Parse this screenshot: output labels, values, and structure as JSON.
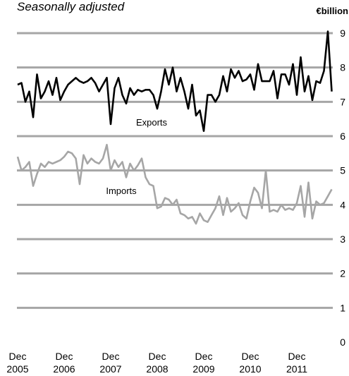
{
  "chart_data": {
    "type": "line",
    "subtitle": "Seasonally adjusted",
    "unit_label": "€billion",
    "ylim": [
      0,
      9
    ],
    "y_ticks": [
      0,
      1,
      2,
      3,
      4,
      5,
      6,
      7,
      8,
      9
    ],
    "grid": true,
    "x_tick_labels": [
      {
        "month": "Dec",
        "year": "2005"
      },
      {
        "month": "Dec",
        "year": "2006"
      },
      {
        "month": "Dec",
        "year": "2007"
      },
      {
        "month": "Dec",
        "year": "2008"
      },
      {
        "month": "Dec",
        "year": "2009"
      },
      {
        "month": "Dec",
        "year": "2010"
      },
      {
        "month": "Dec",
        "year": "2011"
      }
    ],
    "x_start": "2005-12",
    "series": [
      {
        "name": "Exports",
        "color": "#000000",
        "values": [
          7.5,
          7.55,
          7.0,
          7.3,
          6.55,
          7.8,
          7.1,
          7.3,
          7.6,
          7.2,
          7.7,
          7.05,
          7.3,
          7.5,
          7.6,
          7.7,
          7.6,
          7.55,
          7.6,
          7.7,
          7.55,
          7.3,
          7.5,
          7.7,
          6.35,
          7.4,
          7.7,
          7.2,
          6.95,
          7.4,
          7.2,
          7.35,
          7.3,
          7.35,
          7.35,
          7.2,
          6.8,
          7.3,
          7.95,
          7.5,
          8.0,
          7.3,
          7.7,
          7.3,
          6.8,
          7.5,
          6.6,
          6.75,
          6.15,
          7.2,
          7.2,
          7.0,
          7.2,
          7.75,
          7.3,
          7.95,
          7.7,
          7.9,
          7.6,
          7.65,
          7.8,
          7.35,
          8.1,
          7.6,
          7.6,
          7.6,
          7.9,
          7.1,
          7.8,
          7.8,
          7.5,
          8.1,
          7.2,
          8.3,
          7.3,
          7.75,
          7.05,
          7.6,
          7.55,
          7.9,
          9.05,
          7.3
        ]
      },
      {
        "name": "Imports",
        "color": "#a6a6a6",
        "values": [
          5.4,
          5.0,
          5.1,
          5.25,
          4.55,
          4.9,
          5.2,
          5.1,
          5.25,
          5.2,
          5.25,
          5.3,
          5.4,
          5.55,
          5.5,
          5.35,
          4.6,
          5.45,
          5.2,
          5.35,
          5.25,
          5.2,
          5.35,
          5.75,
          5.0,
          5.3,
          5.1,
          5.25,
          4.8,
          5.2,
          5.0,
          5.15,
          5.35,
          4.8,
          4.6,
          4.55,
          3.9,
          3.95,
          4.2,
          4.15,
          4.0,
          4.15,
          3.75,
          3.7,
          3.6,
          3.65,
          3.45,
          3.75,
          3.55,
          3.5,
          3.7,
          3.9,
          4.25,
          3.7,
          4.2,
          3.8,
          3.9,
          4.05,
          3.7,
          3.6,
          4.1,
          4.5,
          4.35,
          3.9,
          5.0,
          3.8,
          3.85,
          3.8,
          4.0,
          3.85,
          3.9,
          3.85,
          4.05,
          4.55,
          3.65,
          4.65,
          3.6,
          4.1,
          4.0,
          4.05,
          4.25,
          4.45
        ]
      }
    ]
  }
}
